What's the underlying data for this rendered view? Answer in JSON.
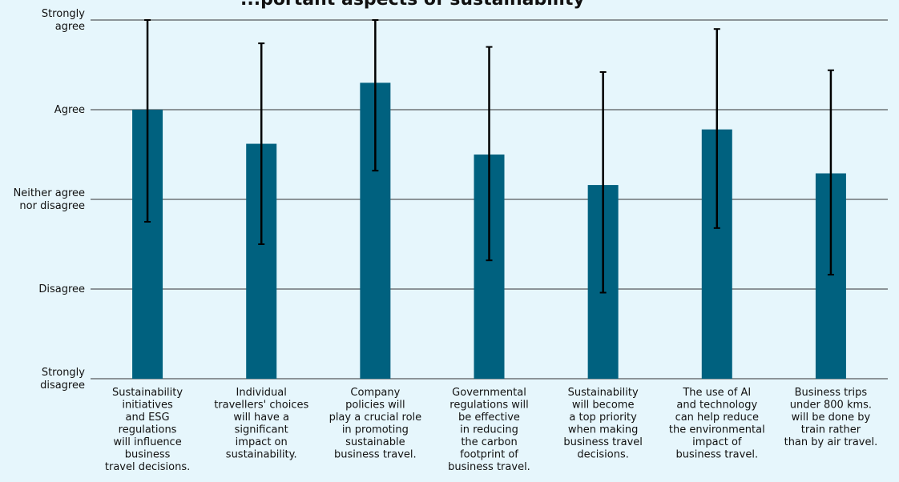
{
  "chart_data": {
    "type": "bar",
    "title": "...portant aspects of sustainability",
    "y_scale_labels": [
      "Strongly disagree",
      "Disagree",
      "Neither agree nor disagree",
      "Agree",
      "Strongly agree"
    ],
    "ylim": [
      1,
      5
    ],
    "grid": true,
    "bar_color": "#00617f",
    "error_bar_color": "#000000",
    "categories": [
      [
        "Sustainability",
        "initiatives",
        "and ESG",
        "regulations",
        "will influence",
        "business",
        "travel decisions."
      ],
      [
        "Individual",
        "travellers' choices",
        "will have a",
        "significant",
        "impact on",
        "sustainability."
      ],
      [
        "Company",
        "policies will",
        "play a crucial role",
        "in promoting",
        "sustainable",
        "business travel."
      ],
      [
        "Governmental",
        "regulations will",
        "be effective",
        "in reducing",
        "the carbon",
        "footprint of",
        "business travel."
      ],
      [
        "Sustainability",
        "will become",
        "a top priority",
        "when making",
        "business travel",
        "decisions."
      ],
      [
        "The use of AI",
        "and technology",
        "can help reduce",
        "the environmental",
        "impact of",
        "business travel."
      ],
      [
        "Business trips",
        "under 800 kms.",
        "will be done by",
        "train rather",
        "than by air travel."
      ]
    ],
    "values": [
      4.0,
      3.62,
      4.3,
      3.5,
      3.16,
      3.78,
      3.29
    ],
    "error_low": [
      2.75,
      2.5,
      3.32,
      2.32,
      1.96,
      2.68,
      2.16
    ],
    "error_high": [
      5.0,
      4.74,
      5.0,
      4.7,
      4.42,
      4.9,
      4.44
    ]
  }
}
